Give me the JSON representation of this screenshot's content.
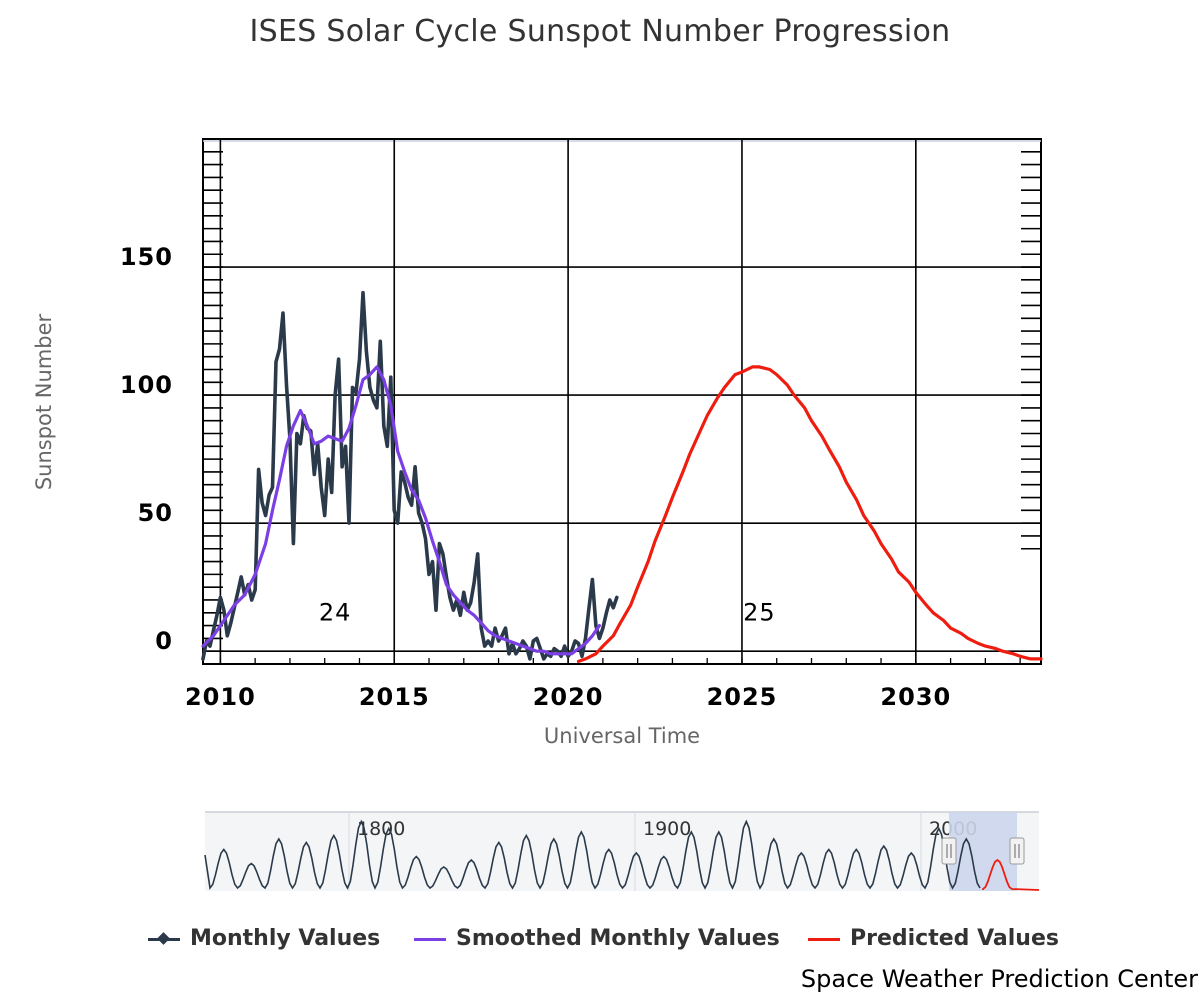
{
  "chart_data": {
    "type": "line",
    "title": "ISES Solar Cycle Sunspot Number Progression",
    "xlabel": "Universal Time",
    "ylabel": "Sunspot Number",
    "xlim": [
      2009.5,
      2033.6
    ],
    "ylim": [
      -5,
      200
    ],
    "x_ticks": [
      2010,
      2015,
      2020,
      2025,
      2030
    ],
    "y_ticks": [
      0,
      50,
      100,
      150
    ],
    "grid": true,
    "legend_position": "bottom",
    "cycle_labels": [
      {
        "text": "24",
        "x": 2013.3,
        "y": 12
      },
      {
        "text": "25",
        "x": 2025.5,
        "y": 12
      }
    ],
    "series": [
      {
        "name": "Monthly Values",
        "color": "#2b3a4a",
        "marker": "diamond",
        "x": [
          2009.5,
          2009.6,
          2009.7,
          2009.8,
          2009.9,
          2010.0,
          2010.1,
          2010.2,
          2010.3,
          2010.4,
          2010.5,
          2010.6,
          2010.7,
          2010.8,
          2010.9,
          2011.0,
          2011.1,
          2011.2,
          2011.3,
          2011.4,
          2011.5,
          2011.6,
          2011.7,
          2011.8,
          2011.9,
          2012.0,
          2012.1,
          2012.2,
          2012.3,
          2012.4,
          2012.5,
          2012.6,
          2012.7,
          2012.8,
          2012.9,
          2013.0,
          2013.1,
          2013.2,
          2013.3,
          2013.4,
          2013.5,
          2013.6,
          2013.7,
          2013.8,
          2013.9,
          2014.0,
          2014.1,
          2014.2,
          2014.3,
          2014.4,
          2014.5,
          2014.6,
          2014.7,
          2014.8,
          2014.9,
          2015.0,
          2015.1,
          2015.2,
          2015.3,
          2015.4,
          2015.5,
          2015.6,
          2015.7,
          2015.8,
          2015.9,
          2016.0,
          2016.1,
          2016.2,
          2016.3,
          2016.4,
          2016.5,
          2016.6,
          2016.7,
          2016.8,
          2016.9,
          2017.0,
          2017.1,
          2017.2,
          2017.3,
          2017.4,
          2017.5,
          2017.6,
          2017.7,
          2017.8,
          2017.9,
          2018.0,
          2018.1,
          2018.2,
          2018.3,
          2018.4,
          2018.5,
          2018.6,
          2018.7,
          2018.8,
          2018.9,
          2019.0,
          2019.1,
          2019.2,
          2019.3,
          2019.4,
          2019.5,
          2019.6,
          2019.7,
          2019.8,
          2019.9,
          2020.0,
          2020.1,
          2020.2,
          2020.3,
          2020.4,
          2020.5,
          2020.6,
          2020.7,
          2020.8,
          2020.9,
          2021.0,
          2021.1,
          2021.2,
          2021.3,
          2021.4
        ],
        "values": [
          -3,
          4,
          2,
          8,
          14,
          21,
          16,
          6,
          11,
          17,
          23,
          29,
          22,
          26,
          20,
          24,
          71,
          58,
          53,
          61,
          64,
          113,
          118,
          132,
          104,
          83,
          42,
          85,
          81,
          92,
          87,
          86,
          69,
          81,
          64,
          53,
          75,
          62,
          100,
          114,
          72,
          80,
          50,
          103,
          101,
          114,
          140,
          117,
          103,
          98,
          95,
          121,
          88,
          80,
          107,
          55,
          50,
          70,
          66,
          60,
          57,
          72,
          54,
          50,
          44,
          30,
          35,
          16,
          42,
          38,
          29,
          21,
          16,
          20,
          14,
          23,
          16,
          19,
          27,
          38,
          9,
          2,
          4,
          2,
          9,
          4,
          6,
          9,
          -1,
          3,
          -1,
          1,
          4,
          2,
          -3,
          4,
          5,
          1,
          -3,
          -1,
          -2,
          1,
          0,
          -2,
          2,
          -2,
          0,
          4,
          3,
          -2,
          5,
          17,
          28,
          10,
          5,
          9,
          15,
          20,
          17,
          21
        ]
      },
      {
        "name": "Smoothed Monthly Values",
        "color": "#7b3fe4",
        "x": [
          2009.5,
          2009.8,
          2010.1,
          2010.4,
          2010.7,
          2011.0,
          2011.3,
          2011.5,
          2011.7,
          2011.9,
          2012.1,
          2012.3,
          2012.5,
          2012.7,
          2012.9,
          2013.1,
          2013.3,
          2013.5,
          2013.7,
          2013.9,
          2014.1,
          2014.3,
          2014.5,
          2014.7,
          2014.9,
          2015.1,
          2015.3,
          2015.5,
          2015.7,
          2015.9,
          2016.1,
          2016.3,
          2016.5,
          2016.7,
          2016.9,
          2017.1,
          2017.3,
          2017.5,
          2017.7,
          2017.9,
          2018.1,
          2018.3,
          2018.5,
          2018.7,
          2018.9,
          2019.1,
          2019.3,
          2019.5,
          2019.7,
          2019.9,
          2020.1,
          2020.3,
          2020.5,
          2020.7,
          2020.9
        ],
        "values": [
          2,
          6,
          12,
          18,
          22,
          30,
          42,
          55,
          67,
          80,
          88,
          94,
          88,
          81,
          82,
          84,
          83,
          82,
          87,
          96,
          106,
          108,
          111,
          106,
          96,
          78,
          70,
          63,
          59,
          52,
          43,
          35,
          26,
          22,
          19,
          16,
          14,
          11,
          8,
          6,
          5,
          4,
          3,
          2,
          1,
          0,
          0,
          -1,
          -1,
          -1,
          -1,
          1,
          3,
          6,
          10
        ]
      },
      {
        "name": "Predicted Values",
        "color": "#ee1d0f",
        "x": [
          2020.3,
          2020.5,
          2020.8,
          2021.0,
          2021.3,
          2021.5,
          2021.8,
          2022.0,
          2022.3,
          2022.5,
          2022.8,
          2023.0,
          2023.3,
          2023.5,
          2023.8,
          2024.0,
          2024.3,
          2024.5,
          2024.8,
          2025.0,
          2025.3,
          2025.5,
          2025.8,
          2026.0,
          2026.3,
          2026.5,
          2026.8,
          2027.0,
          2027.3,
          2027.5,
          2027.8,
          2028.0,
          2028.3,
          2028.5,
          2028.8,
          2029.0,
          2029.3,
          2029.5,
          2029.8,
          2030.0,
          2030.3,
          2030.5,
          2030.8,
          2031.0,
          2031.3,
          2031.5,
          2031.8,
          2032.0,
          2032.3,
          2032.5,
          2032.8,
          2033.0,
          2033.3,
          2033.6
        ],
        "values": [
          -4,
          -3,
          -1,
          2,
          6,
          11,
          18,
          25,
          35,
          43,
          53,
          60,
          70,
          77,
          86,
          92,
          99,
          103,
          108,
          109,
          111,
          111,
          110,
          108,
          104,
          100,
          95,
          90,
          84,
          79,
          72,
          66,
          59,
          53,
          47,
          42,
          36,
          31,
          27,
          23,
          18,
          15,
          12,
          9,
          7,
          5,
          3,
          2,
          1,
          0,
          -1,
          -2,
          -3,
          -3
        ]
      }
    ]
  },
  "navigator": {
    "labels": [
      "1800",
      "1900",
      "2000"
    ]
  },
  "legend": {
    "items": [
      {
        "label": "Monthly Values",
        "color": "#2b3a4a"
      },
      {
        "label": "Smoothed Monthly Values",
        "color": "#7b3fe4"
      },
      {
        "label": "Predicted Values",
        "color": "#ee1d0f"
      }
    ]
  },
  "credit": "Space Weather Prediction Center"
}
